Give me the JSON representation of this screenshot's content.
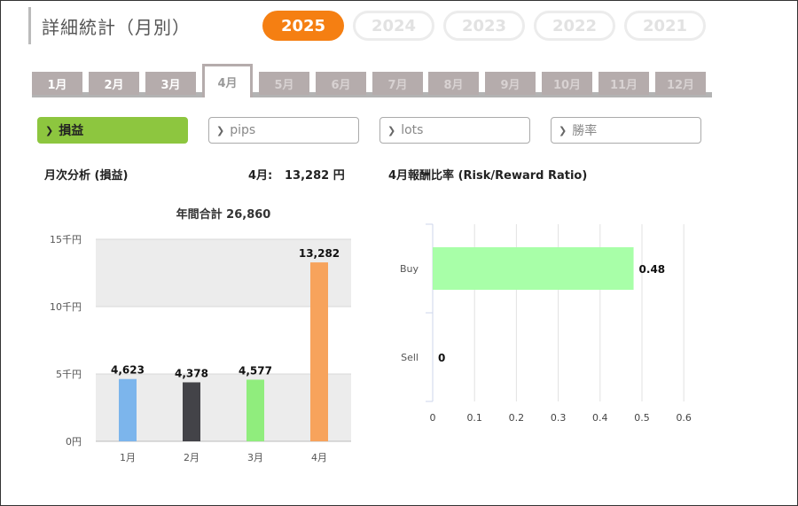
{
  "page_title": "詳細統計（月別）",
  "years": [
    {
      "label": "2025",
      "active": true
    },
    {
      "label": "2024",
      "active": false
    },
    {
      "label": "2023",
      "active": false
    },
    {
      "label": "2022",
      "active": false
    },
    {
      "label": "2021",
      "active": false
    }
  ],
  "months": [
    {
      "label": "1月",
      "state": "past"
    },
    {
      "label": "2月",
      "state": "past"
    },
    {
      "label": "3月",
      "state": "past"
    },
    {
      "label": "4月",
      "state": "active"
    },
    {
      "label": "5月",
      "state": "future"
    },
    {
      "label": "6月",
      "state": "future"
    },
    {
      "label": "7月",
      "state": "future"
    },
    {
      "label": "8月",
      "state": "future"
    },
    {
      "label": "9月",
      "state": "future"
    },
    {
      "label": "10月",
      "state": "future"
    },
    {
      "label": "11月",
      "state": "future"
    },
    {
      "label": "12月",
      "state": "future"
    }
  ],
  "filters": [
    {
      "label": "損益",
      "active": true,
      "icon": "chevron-right-icon"
    },
    {
      "label": "pips",
      "active": false,
      "icon": "chevron-right-icon"
    },
    {
      "label": "lots",
      "active": false,
      "icon": "chevron-right-icon"
    },
    {
      "label": "勝率",
      "active": false,
      "icon": "chevron-right-icon"
    }
  ],
  "monthly_section": {
    "title": "月次分析 (損益)",
    "summary_label": "4月:",
    "summary_value": "13,282 円"
  },
  "ratio_section": {
    "title": "4月報酬比率 (Risk/Reward Ratio)"
  },
  "colors": {
    "accent": "#f57f12",
    "filter_active": "#8dc63f",
    "bar_colors": [
      "#7cb5ec",
      "#434348",
      "#90ed7d",
      "#f7a35c"
    ],
    "ratio_bar": "#a8ffa8"
  },
  "chart_data": [
    {
      "type": "bar",
      "title": "年間合計 26,860",
      "categories": [
        "1月",
        "2月",
        "3月",
        "4月"
      ],
      "values": [
        4623,
        4378,
        4577,
        13282
      ],
      "data_labels": [
        "4,623",
        "4,378",
        "4,577",
        "13,282"
      ],
      "yticks": [
        0,
        5000,
        10000,
        15000
      ],
      "ytick_labels": [
        "0円",
        "5千円",
        "10千円",
        "15千円"
      ],
      "ylim": [
        0,
        15000
      ],
      "xlabel": "",
      "ylabel": ""
    },
    {
      "type": "bar",
      "orientation": "horizontal",
      "title": "",
      "categories": [
        "Buy",
        "Sell"
      ],
      "values": [
        0.48,
        0
      ],
      "data_labels": [
        "0.48",
        "0"
      ],
      "xticks": [
        0,
        0.1,
        0.2,
        0.3,
        0.4,
        0.5,
        0.6
      ],
      "xtick_labels": [
        "0",
        "0.1",
        "0.2",
        "0.3",
        "0.4",
        "0.5",
        "0.6"
      ],
      "xlim": [
        0,
        0.6
      ],
      "xlabel": "",
      "ylabel": "",
      "grid": true
    }
  ]
}
